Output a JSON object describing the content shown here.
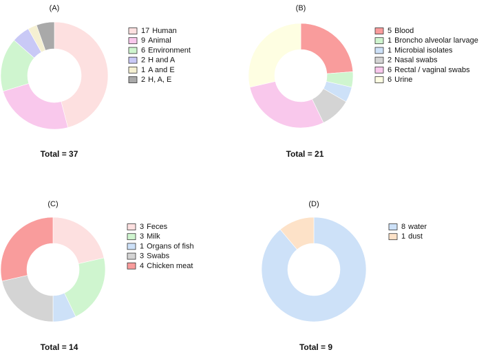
{
  "chart_data": [
    {
      "type": "donut",
      "title": "(A)",
      "footer": "Total = 37",
      "categories": [
        "Human",
        "Animal",
        "Environment",
        "H and A",
        "A and E",
        "H, A, E"
      ],
      "values": [
        17,
        9,
        6,
        2,
        1,
        2
      ],
      "colors": [
        "#fde0e0",
        "#f9c8ec",
        "#cff5cf",
        "#c9c9f6",
        "#f5f0d2",
        "#a9a9a9"
      ]
    },
    {
      "type": "donut",
      "title": "(B)",
      "footer": "Total = 21",
      "categories": [
        "Blood",
        "Broncho alveolar larvage",
        "Microbial isolates",
        "Nasal swabs",
        "Rectal / vaginal swabs",
        "Urine"
      ],
      "values": [
        5,
        1,
        1,
        2,
        6,
        6
      ],
      "colors": [
        "#f99c9c",
        "#cff5cf",
        "#cde1f8",
        "#d4d4d4",
        "#f9c8ec",
        "#fefee2"
      ]
    },
    {
      "type": "donut",
      "title": "(C)",
      "footer": "Total = 14",
      "categories": [
        "Feces",
        "Milk",
        "Organs of fish",
        "Swabs",
        "Chicken meat"
      ],
      "values": [
        3,
        3,
        1,
        3,
        4
      ],
      "colors": [
        "#fde0e0",
        "#cff5cf",
        "#cde1f8",
        "#d4d4d4",
        "#f99c9c"
      ]
    },
    {
      "type": "donut",
      "title": "(D)",
      "footer": "Total = 9",
      "categories": [
        "water",
        "dust"
      ],
      "values": [
        8,
        1
      ],
      "colors": [
        "#cde1f8",
        "#fde2c8"
      ]
    }
  ]
}
